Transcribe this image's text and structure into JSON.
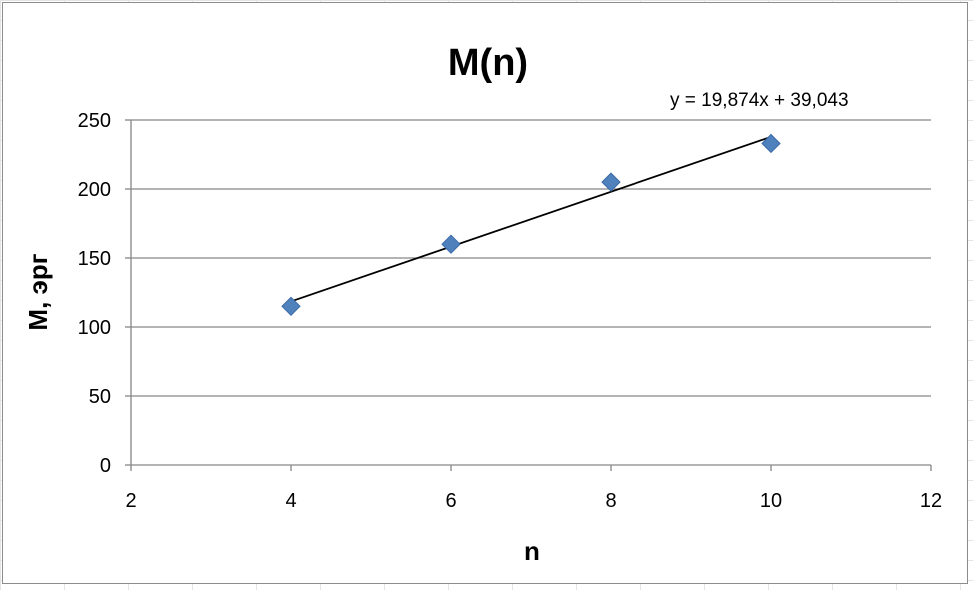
{
  "chart_data": {
    "type": "scatter",
    "title": "M(n)",
    "xlabel": "n",
    "ylabel": "M, эрг",
    "xlim": [
      2,
      12
    ],
    "ylim": [
      0,
      250
    ],
    "xticks": [
      2,
      4,
      6,
      8,
      10,
      12
    ],
    "yticks": [
      0,
      50,
      100,
      150,
      200,
      250
    ],
    "grid": "horizontal",
    "marker_color": "#4f81bd",
    "line_color": "#000000",
    "series": [
      {
        "x": [
          4,
          6,
          8,
          10
        ],
        "y": [
          115,
          160,
          205,
          233
        ]
      }
    ],
    "trendline": {
      "slope": 19.874,
      "intercept": 39.043,
      "x_range": [
        4,
        10
      ],
      "equation_label": "y = 19,874x + 39,043"
    }
  }
}
